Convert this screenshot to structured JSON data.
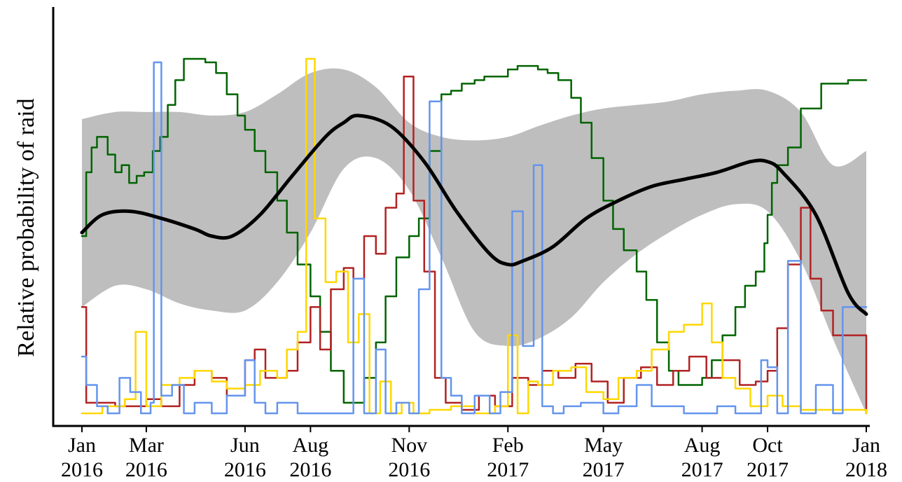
{
  "chart_data": {
    "type": "line",
    "title": "",
    "xlabel": "",
    "ylabel": "Relative probability of raid",
    "y_tick_labels": false,
    "grid": false,
    "legend": "none",
    "x_range": [
      "2016-01-01",
      "2018-01-01"
    ],
    "y_range": [
      0,
      1
    ],
    "x_ticks": [
      {
        "date": "2016-01-01",
        "month": "Jan",
        "year": "2016"
      },
      {
        "date": "2016-03-01",
        "month": "Mar",
        "year": "2016"
      },
      {
        "date": "2016-06-01",
        "month": "Jun",
        "year": "2016"
      },
      {
        "date": "2016-08-01",
        "month": "Aug",
        "year": "2016"
      },
      {
        "date": "2016-11-01",
        "month": "Nov",
        "year": "2016"
      },
      {
        "date": "2017-02-01",
        "month": "Feb",
        "year": "2017"
      },
      {
        "date": "2017-05-01",
        "month": "May",
        "year": "2017"
      },
      {
        "date": "2017-08-01",
        "month": "Aug",
        "year": "2017"
      },
      {
        "date": "2017-10-01",
        "month": "Oct",
        "year": "2017"
      },
      {
        "date": "2018-01-01",
        "month": "Jan",
        "year": "2018"
      }
    ],
    "band": {
      "color": "#bebebe",
      "x": [
        "2016-01-01",
        "2016-02-01",
        "2016-03-01",
        "2016-04-01",
        "2016-05-01",
        "2016-06-01",
        "2016-07-01",
        "2016-08-01",
        "2016-09-01",
        "2016-10-01",
        "2016-11-01",
        "2016-12-01",
        "2017-01-01",
        "2017-02-01",
        "2017-03-01",
        "2017-04-01",
        "2017-05-01",
        "2017-06-01",
        "2017-07-01",
        "2017-08-01",
        "2017-09-01",
        "2017-10-01",
        "2017-11-01",
        "2017-12-01",
        "2018-01-01"
      ],
      "lower": [
        0.3,
        0.36,
        0.35,
        0.31,
        0.29,
        0.29,
        0.37,
        0.51,
        0.69,
        0.72,
        0.63,
        0.44,
        0.23,
        0.19,
        0.21,
        0.27,
        0.37,
        0.45,
        0.51,
        0.56,
        0.59,
        0.57,
        0.43,
        0.21,
        0.0
      ],
      "upper": [
        0.83,
        0.85,
        0.85,
        0.85,
        0.84,
        0.85,
        0.9,
        0.96,
        0.97,
        0.92,
        0.82,
        0.78,
        0.77,
        0.78,
        0.81,
        0.84,
        0.86,
        0.87,
        0.88,
        0.9,
        0.91,
        0.91,
        0.85,
        0.7,
        0.74
      ]
    },
    "series": [
      {
        "color": "#000000",
        "x": [
          "2016-01-01",
          "2016-01-20",
          "2016-02-15",
          "2016-03-15",
          "2016-04-15",
          "2016-05-01",
          "2016-05-20",
          "2016-06-15",
          "2016-07-15",
          "2016-08-15",
          "2016-09-01",
          "2016-09-15",
          "2016-10-15",
          "2016-11-15",
          "2016-12-15",
          "2017-01-15",
          "2017-02-01",
          "2017-02-15",
          "2017-03-15",
          "2017-04-15",
          "2017-05-15",
          "2017-06-15",
          "2017-07-15",
          "2017-08-15",
          "2017-09-15",
          "2017-10-01",
          "2017-10-15",
          "2017-11-15",
          "2017-12-15",
          "2018-01-01"
        ],
        "values": [
          0.51,
          0.56,
          0.57,
          0.55,
          0.52,
          0.5,
          0.5,
          0.56,
          0.67,
          0.78,
          0.82,
          0.84,
          0.81,
          0.71,
          0.57,
          0.45,
          0.42,
          0.43,
          0.47,
          0.55,
          0.6,
          0.64,
          0.66,
          0.68,
          0.71,
          0.71,
          0.68,
          0.56,
          0.34,
          0.28
        ]
      },
      {
        "color": "#006400",
        "x": [
          "2016-01-01",
          "2016-01-05",
          "2016-01-10",
          "2016-01-15",
          "2016-01-20",
          "2016-01-25",
          "2016-02-01",
          "2016-02-07",
          "2016-02-14",
          "2016-02-21",
          "2016-02-28",
          "2016-03-07",
          "2016-03-14",
          "2016-03-21",
          "2016-03-28",
          "2016-04-05",
          "2016-04-15",
          "2016-04-25",
          "2016-05-05",
          "2016-05-15",
          "2016-05-25",
          "2016-06-01",
          "2016-06-10",
          "2016-06-20",
          "2016-07-01",
          "2016-07-10",
          "2016-07-20",
          "2016-08-01",
          "2016-08-10",
          "2016-08-20",
          "2016-09-01",
          "2016-09-10",
          "2016-09-20",
          "2016-10-01",
          "2016-10-10",
          "2016-10-20",
          "2016-11-01",
          "2016-11-10",
          "2016-11-20",
          "2016-12-01",
          "2016-12-10",
          "2016-12-20",
          "2017-01-01",
          "2017-01-10",
          "2017-01-20",
          "2017-02-01",
          "2017-02-10",
          "2017-02-20",
          "2017-03-01",
          "2017-03-10",
          "2017-03-20",
          "2017-04-01",
          "2017-04-10",
          "2017-04-20",
          "2017-05-01",
          "2017-05-10",
          "2017-05-20",
          "2017-06-01",
          "2017-06-10",
          "2017-06-20",
          "2017-07-01",
          "2017-07-10",
          "2017-07-20",
          "2017-08-01",
          "2017-08-10",
          "2017-08-20",
          "2017-09-01",
          "2017-09-10",
          "2017-09-20",
          "2017-09-28",
          "2017-10-01",
          "2017-10-05",
          "2017-10-10",
          "2017-10-20",
          "2017-11-01",
          "2017-11-20",
          "2017-12-15",
          "2018-01-01"
        ],
        "values": [
          0.5,
          0.68,
          0.75,
          0.78,
          0.78,
          0.73,
          0.68,
          0.7,
          0.65,
          0.67,
          0.68,
          0.74,
          0.78,
          0.87,
          0.94,
          1.0,
          1.0,
          0.99,
          0.96,
          0.9,
          0.84,
          0.8,
          0.74,
          0.68,
          0.6,
          0.51,
          0.42,
          0.33,
          0.23,
          0.12,
          0.03,
          0.03,
          0.1,
          0.2,
          0.33,
          0.44,
          0.5,
          0.55,
          0.74,
          0.9,
          0.91,
          0.93,
          0.94,
          0.95,
          0.95,
          0.97,
          0.98,
          0.98,
          0.97,
          0.96,
          0.94,
          0.89,
          0.82,
          0.72,
          0.6,
          0.52,
          0.46,
          0.4,
          0.32,
          0.2,
          0.12,
          0.08,
          0.08,
          0.1,
          0.15,
          0.22,
          0.3,
          0.36,
          0.4,
          0.48,
          0.56,
          0.65,
          0.7,
          0.75,
          0.86,
          0.93,
          0.94,
          0.94
        ]
      },
      {
        "color": "#b22222",
        "x": [
          "2016-01-01",
          "2016-01-05",
          "2016-01-20",
          "2016-02-01",
          "2016-02-15",
          "2016-03-01",
          "2016-03-15",
          "2016-04-01",
          "2016-04-15",
          "2016-05-01",
          "2016-05-15",
          "2016-06-01",
          "2016-06-10",
          "2016-06-20",
          "2016-07-01",
          "2016-07-10",
          "2016-07-20",
          "2016-08-01",
          "2016-08-10",
          "2016-08-20",
          "2016-09-01",
          "2016-09-10",
          "2016-09-20",
          "2016-10-01",
          "2016-10-10",
          "2016-10-20",
          "2016-10-27",
          "2016-11-05",
          "2016-11-15",
          "2016-11-25",
          "2016-12-05",
          "2016-12-20",
          "2017-01-05",
          "2017-01-20",
          "2017-02-05",
          "2017-02-20",
          "2017-03-05",
          "2017-03-20",
          "2017-04-05",
          "2017-04-20",
          "2017-05-05",
          "2017-05-20",
          "2017-06-05",
          "2017-06-20",
          "2017-07-05",
          "2017-07-20",
          "2017-08-05",
          "2017-08-20",
          "2017-09-05",
          "2017-09-20",
          "2017-10-01",
          "2017-10-10",
          "2017-10-20",
          "2017-11-01",
          "2017-11-10",
          "2017-11-20",
          "2017-12-01",
          "2018-01-01"
        ],
        "values": [
          0.3,
          0.03,
          0.03,
          0.02,
          0.02,
          0.04,
          0.02,
          0.08,
          0.12,
          0.1,
          0.05,
          0.15,
          0.18,
          0.1,
          0.1,
          0.12,
          0.2,
          0.3,
          0.18,
          0.35,
          0.41,
          0.38,
          0.5,
          0.45,
          0.58,
          0.62,
          0.95,
          0.6,
          0.4,
          0.1,
          0.03,
          0.01,
          0.05,
          0.02,
          0.1,
          0.08,
          0.12,
          0.1,
          0.14,
          0.09,
          0.03,
          0.1,
          0.13,
          0.08,
          0.12,
          0.16,
          0.1,
          0.15,
          0.08,
          0.09,
          0.12,
          0.24,
          0.42,
          0.58,
          0.38,
          0.29,
          0.22,
          0.0
        ]
      },
      {
        "color": "#ffd700",
        "x": [
          "2016-01-01",
          "2016-01-20",
          "2016-02-10",
          "2016-02-20",
          "2016-03-01",
          "2016-03-15",
          "2016-04-01",
          "2016-04-15",
          "2016-05-01",
          "2016-05-15",
          "2016-06-01",
          "2016-06-15",
          "2016-07-01",
          "2016-07-10",
          "2016-07-20",
          "2016-07-28",
          "2016-08-05",
          "2016-08-15",
          "2016-08-25",
          "2016-09-05",
          "2016-09-15",
          "2016-09-25",
          "2016-10-05",
          "2016-10-15",
          "2016-10-25",
          "2016-11-05",
          "2016-11-20",
          "2016-12-10",
          "2017-01-01",
          "2017-01-20",
          "2017-02-01",
          "2017-02-10",
          "2017-02-20",
          "2017-03-01",
          "2017-03-15",
          "2017-04-01",
          "2017-04-15",
          "2017-05-01",
          "2017-05-15",
          "2017-06-01",
          "2017-06-15",
          "2017-07-01",
          "2017-07-15",
          "2017-08-01",
          "2017-08-10",
          "2017-08-20",
          "2017-09-01",
          "2017-09-15",
          "2017-10-01",
          "2017-10-15",
          "2017-11-01",
          "2017-12-01",
          "2018-01-01"
        ],
        "values": [
          0.0,
          0.02,
          0.04,
          0.23,
          0.02,
          0.08,
          0.1,
          0.12,
          0.09,
          0.07,
          0.08,
          0.12,
          0.1,
          0.18,
          0.23,
          1.0,
          0.55,
          0.37,
          0.4,
          0.2,
          0.28,
          0.0,
          0.09,
          0.0,
          0.03,
          0.0,
          0.01,
          0.02,
          0.0,
          0.02,
          0.22,
          0.0,
          0.09,
          0.08,
          0.12,
          0.13,
          0.06,
          0.04,
          0.1,
          0.12,
          0.18,
          0.23,
          0.25,
          0.31,
          0.2,
          0.1,
          0.07,
          0.02,
          0.05,
          0.02,
          0.01,
          0.01,
          0.0
        ]
      },
      {
        "color": "#6495ed",
        "x": [
          "2016-01-01",
          "2016-01-05",
          "2016-01-15",
          "2016-01-25",
          "2016-02-05",
          "2016-02-15",
          "2016-02-25",
          "2016-03-05",
          "2016-03-08",
          "2016-03-15",
          "2016-03-25",
          "2016-04-05",
          "2016-04-15",
          "2016-05-01",
          "2016-05-15",
          "2016-06-01",
          "2016-06-10",
          "2016-06-20",
          "2016-07-01",
          "2016-07-20",
          "2016-08-10",
          "2016-08-20",
          "2016-09-01",
          "2016-09-10",
          "2016-09-20",
          "2016-10-01",
          "2016-10-10",
          "2016-10-20",
          "2016-11-01",
          "2016-11-10",
          "2016-11-20",
          "2016-12-01",
          "2016-12-10",
          "2016-12-20",
          "2017-01-01",
          "2017-01-15",
          "2017-01-25",
          "2017-02-05",
          "2017-02-15",
          "2017-02-25",
          "2017-03-05",
          "2017-03-15",
          "2017-03-25",
          "2017-04-10",
          "2017-05-01",
          "2017-05-15",
          "2017-06-01",
          "2017-06-15",
          "2017-07-01",
          "2017-07-15",
          "2017-08-01",
          "2017-08-15",
          "2017-09-01",
          "2017-09-15",
          "2017-09-25",
          "2017-10-01",
          "2017-10-10",
          "2017-10-20",
          "2017-11-01",
          "2017-11-15",
          "2017-12-01",
          "2017-12-10",
          "2018-01-01"
        ],
        "values": [
          0.16,
          0.08,
          0.02,
          0.0,
          0.1,
          0.06,
          0.0,
          0.03,
          0.99,
          0.05,
          0.08,
          0.0,
          0.03,
          0.0,
          0.05,
          0.15,
          0.03,
          0.0,
          0.03,
          0.0,
          0.0,
          0.0,
          0.0,
          0.38,
          0.0,
          0.18,
          0.0,
          0.03,
          0.0,
          0.35,
          0.88,
          0.1,
          0.05,
          0.0,
          0.05,
          0.0,
          0.06,
          0.57,
          0.19,
          0.7,
          0.02,
          0.0,
          0.02,
          0.03,
          0.0,
          0.02,
          0.08,
          0.02,
          0.02,
          0.0,
          0.0,
          0.02,
          0.0,
          0.0,
          0.15,
          0.13,
          0.0,
          0.43,
          0.0,
          0.08,
          0.0,
          0.3,
          0.3
        ]
      }
    ]
  }
}
